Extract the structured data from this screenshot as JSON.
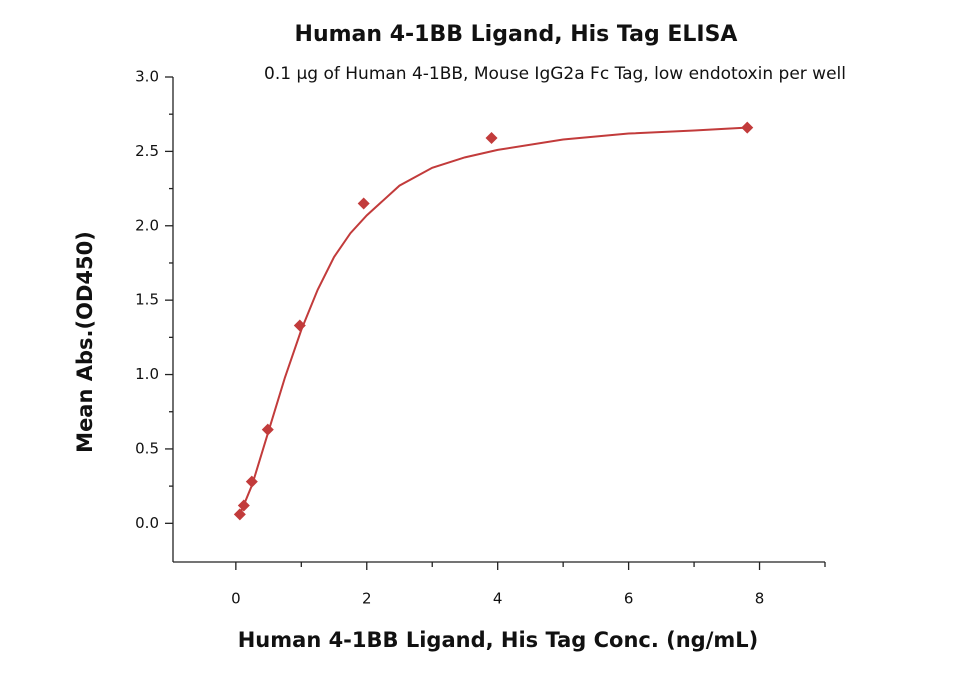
{
  "chart_data": {
    "type": "scatter",
    "title": "Human 4-1BB Ligand, His Tag ELISA",
    "subtitle": "0.1 μg of Human 4-1BB, Mouse IgG2a Fc Tag, low endotoxin per well",
    "x_label": "Human 4-1BB Ligand, His Tag Conc. (ng/mL)",
    "y_label": "Mean Abs.(OD450)",
    "xlim": [
      -0.96,
      9.0
    ],
    "ylim": [
      -0.26,
      3.0
    ],
    "xticks": [
      0,
      2,
      4,
      6,
      8
    ],
    "xminor": [
      1,
      3,
      5,
      7,
      9
    ],
    "yticks": [
      {
        "value": 0,
        "label": "0.0"
      },
      0.5,
      {
        "value": 1,
        "label": "1.0"
      },
      1.5,
      {
        "value": 2,
        "label": "2.0"
      },
      2.5,
      {
        "value": 3,
        "label": "3.0"
      }
    ],
    "yminor": [
      0.25,
      0.75,
      1.25,
      1.75,
      2.25,
      2.75
    ],
    "grid": false,
    "series": [
      {
        "type": "scatter",
        "color": "#c23b3b",
        "x": [
          0.061,
          0.122,
          0.244,
          0.488,
          0.977,
          1.953,
          3.906,
          7.8125
        ],
        "values": [
          0.06,
          0.12,
          0.28,
          0.63,
          1.33,
          2.15,
          2.59,
          2.66
        ]
      },
      {
        "type": "line",
        "color": "#c23b3b",
        "x": [
          0.05,
          0.1,
          0.25,
          0.5,
          0.75,
          1.0,
          1.25,
          1.5,
          1.75,
          2.0,
          2.5,
          3.0,
          3.5,
          4.0,
          5.0,
          6.0,
          7.0,
          7.8
        ],
        "values": [
          0.05,
          0.1,
          0.26,
          0.62,
          0.98,
          1.3,
          1.57,
          1.79,
          1.95,
          2.07,
          2.27,
          2.39,
          2.46,
          2.51,
          2.58,
          2.62,
          2.64,
          2.66
        ]
      }
    ]
  }
}
